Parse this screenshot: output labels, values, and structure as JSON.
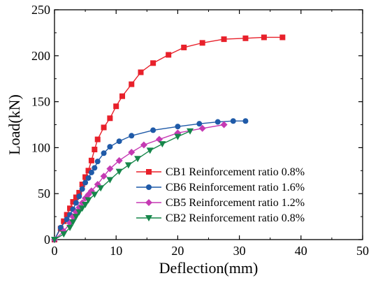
{
  "chart_data": {
    "type": "line",
    "title": "",
    "xlabel": "Deflection(mm)",
    "ylabel": "Load(kN)",
    "xlim": [
      0,
      50
    ],
    "ylim": [
      0,
      250
    ],
    "xticks": [
      0,
      10,
      20,
      30,
      40,
      50
    ],
    "yticks": [
      0,
      50,
      100,
      150,
      200,
      250
    ],
    "grid": false,
    "legend_position": "lower-right",
    "series": [
      {
        "name": "CB1 Reinforcement ratio 0.8%",
        "color": "#e8202a",
        "marker": "square",
        "x": [
          0,
          1.0,
          1.5,
          2.0,
          2.5,
          3.0,
          3.5,
          4.0,
          4.5,
          5.0,
          5.5,
          6.0,
          6.5,
          7.0,
          8.0,
          9.0,
          10.0,
          11.0,
          12.5,
          14.0,
          16.0,
          18.5,
          21.0,
          24.0,
          27.5,
          31.0,
          34.0,
          37.0
        ],
        "y": [
          0,
          12,
          20,
          27,
          34,
          41,
          46,
          51,
          60,
          68,
          75,
          86,
          98,
          109,
          122,
          132,
          145,
          156,
          169,
          182,
          192,
          201,
          209,
          214,
          218,
          219,
          220,
          220
        ]
      },
      {
        "name": "CB6 Reinforcement ratio 1.6%",
        "color": "#1f5aa8",
        "marker": "circle",
        "x": [
          0,
          1.0,
          2.0,
          2.5,
          3.0,
          3.5,
          4.0,
          4.5,
          5.0,
          5.5,
          6.0,
          6.5,
          7.0,
          8.0,
          9.0,
          10.5,
          12.5,
          16.0,
          20.0,
          23.5,
          26.5,
          29.0,
          31.0
        ],
        "y": [
          0,
          13,
          22,
          27,
          33,
          40,
          47,
          55,
          62,
          67,
          73,
          78,
          85,
          94,
          101,
          107,
          113,
          119,
          123,
          126,
          128,
          129,
          129
        ]
      },
      {
        "name": "CB5 Reinforcement ratio 1.2%",
        "color": "#c53ab3",
        "marker": "diamond",
        "x": [
          0,
          1.5,
          2.5,
          3.0,
          3.5,
          4.0,
          4.5,
          5.0,
          5.5,
          6.0,
          7.0,
          8.0,
          9.0,
          10.5,
          12.5,
          14.5,
          17.0,
          20.0,
          24.0,
          27.5
        ],
        "y": [
          0,
          9,
          18,
          25,
          30,
          35,
          40,
          45,
          49,
          53,
          60,
          69,
          77,
          86,
          95,
          103,
          109,
          116,
          121,
          125
        ]
      },
      {
        "name": "CB2 Reinforcement ratio 0.8%",
        "color": "#16864a",
        "marker": "triangle-down",
        "x": [
          0,
          1.5,
          2.5,
          3.0,
          3.5,
          4.0,
          4.5,
          5.0,
          5.5,
          6.5,
          7.5,
          9.0,
          10.5,
          12.0,
          13.5,
          15.5,
          17.5,
          20.0,
          22.0
        ],
        "y": [
          0,
          6,
          13,
          19,
          25,
          30,
          34,
          38,
          43,
          49,
          56,
          65,
          74,
          81,
          88,
          97,
          104,
          112,
          118
        ]
      }
    ]
  }
}
